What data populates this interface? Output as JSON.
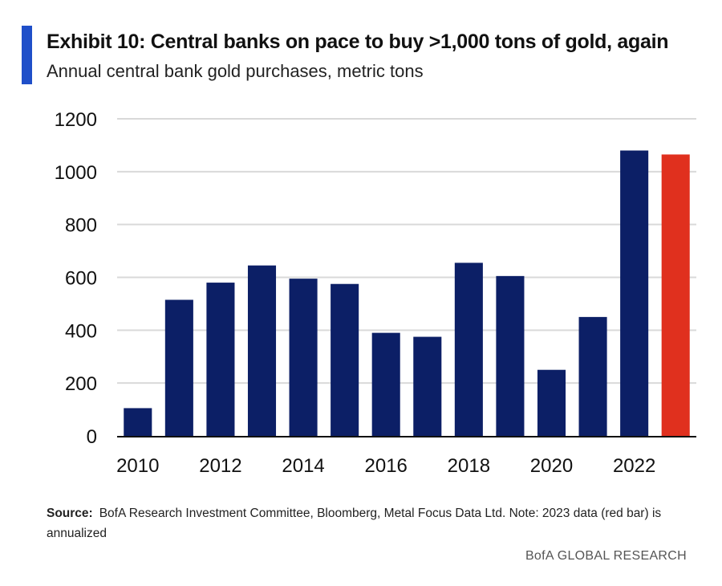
{
  "header": {
    "title": "Exhibit 10: Central banks on pace to buy >1,000 tons of gold, again",
    "subtitle": "Annual central bank gold purchases, metric tons",
    "accent_color": "#1f4fc9"
  },
  "chart_data": {
    "type": "bar",
    "title": "Exhibit 10: Central banks on pace to buy >1,000 tons of gold, again",
    "subtitle": "Annual central bank gold purchases, metric tons",
    "categories": [
      "2010",
      "2011",
      "2012",
      "2013",
      "2014",
      "2015",
      "2016",
      "2017",
      "2018",
      "2019",
      "2020",
      "2021",
      "2022",
      "2023"
    ],
    "x_tick_labels": [
      "2010",
      "2012",
      "2014",
      "2016",
      "2018",
      "2020",
      "2022"
    ],
    "values": [
      105,
      515,
      580,
      645,
      595,
      575,
      390,
      375,
      655,
      605,
      250,
      450,
      1080,
      1065
    ],
    "bar_colors": [
      "#0c1f66",
      "#0c1f66",
      "#0c1f66",
      "#0c1f66",
      "#0c1f66",
      "#0c1f66",
      "#0c1f66",
      "#0c1f66",
      "#0c1f66",
      "#0c1f66",
      "#0c1f66",
      "#0c1f66",
      "#0c1f66",
      "#e0301e"
    ],
    "primary_color": "#0c1f66",
    "highlight_color": "#e0301e",
    "ylim": [
      0,
      1200
    ],
    "y_ticks": [
      0,
      200,
      400,
      600,
      800,
      1000,
      1200
    ],
    "xlabel": "",
    "ylabel": "",
    "grid": true,
    "legend": "none"
  },
  "footer": {
    "source_label": "Source:",
    "source_text": "BofA Research Investment Committee, Bloomberg, Metal Focus Data Ltd. Note: 2023 data (red bar) is annualized",
    "brand": "BofA GLOBAL RESEARCH"
  }
}
